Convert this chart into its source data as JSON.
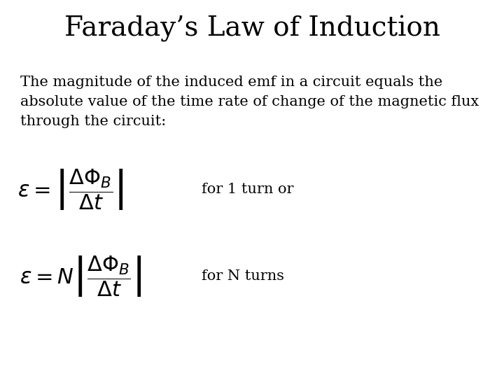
{
  "title": "Faraday’s Law of Induction",
  "title_fontsize": 28,
  "title_font": "serif",
  "body_line1": "The magnitude of the induced emf in a circuit equals the",
  "body_line2": "absolute value of the time rate of change of the magnetic flux",
  "body_line3": "through the circuit:",
  "body_fontsize": 15,
  "body_font": "serif",
  "eq1_label": "for 1 turn or",
  "eq2_label": "for N turns",
  "label_fontsize": 15,
  "label_font": "serif",
  "background_color": "#ffffff",
  "text_color": "#000000",
  "eq_fontsize": 22
}
